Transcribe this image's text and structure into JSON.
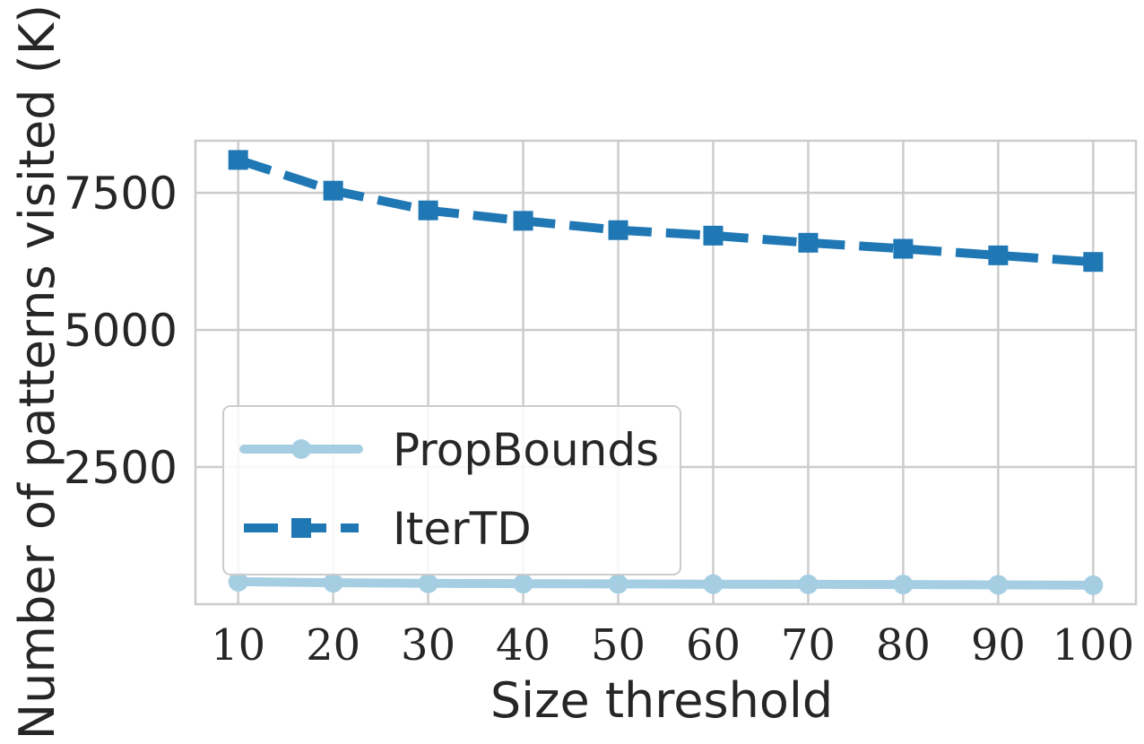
{
  "chart_data": {
    "type": "line",
    "xlabel": "Size threshold",
    "ylabel": "Number of patterns visited (K)",
    "x": [
      10,
      20,
      30,
      40,
      50,
      60,
      70,
      80,
      90,
      100
    ],
    "xlim": [
      5.5,
      104.5
    ],
    "ylim": [
      0,
      8450
    ],
    "yticks": [
      2500,
      5000,
      7500
    ],
    "grid": true,
    "legend_position": "lower-left",
    "series": [
      {
        "name": "PropBounds",
        "color": "#a6cee3",
        "line_style": "solid",
        "marker": "circle",
        "values": [
          410,
          390,
          380,
          375,
          370,
          365,
          362,
          358,
          352,
          345
        ]
      },
      {
        "name": "IterTD",
        "color": "#1f78b4",
        "line_style": "dashed",
        "marker": "square",
        "values": [
          8100,
          7540,
          7180,
          6990,
          6820,
          6720,
          6590,
          6480,
          6360,
          6240
        ]
      }
    ]
  }
}
